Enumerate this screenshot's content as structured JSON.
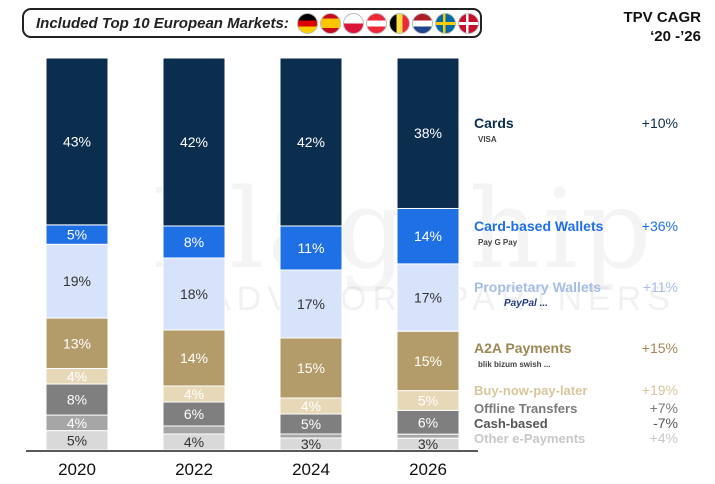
{
  "header": {
    "title": "Included Top 10 European Markets:",
    "flags": [
      "germany-flag",
      "spain-flag",
      "poland-flag",
      "austria-flag",
      "belgium-flag",
      "netherlands-flag",
      "sweden-flag",
      "denmark-flag"
    ]
  },
  "cagr_title": [
    "TPV CAGR",
    "‘20 -’26"
  ],
  "watermark": {
    "line1": "Flagship",
    "line2": "ADVISORY PARTNERS"
  },
  "chart_data": {
    "type": "bar",
    "stacked": true,
    "normalized_100": true,
    "categories": [
      "2020",
      "2022",
      "2024",
      "2026"
    ],
    "series": [
      {
        "name": "Cards",
        "cagr": "+10%",
        "logos": "VISA",
        "color": "#0b2d4e",
        "label_color": "#0b2d4e",
        "text_color": "#ffffff",
        "values": [
          43,
          42,
          42,
          38
        ],
        "labels": [
          "43%",
          "42%",
          "42%",
          "38%"
        ]
      },
      {
        "name": "Card-based Wallets",
        "cagr": "+36%",
        "logos": "Pay  G Pay",
        "color": "#1f6fe5",
        "label_color": "#1f6fe5",
        "text_color": "#ffffff",
        "values": [
          5,
          8,
          11,
          14
        ],
        "labels": [
          "5%",
          "8%",
          "11%",
          "14%"
        ]
      },
      {
        "name": "Proprietary Wallets",
        "cagr": "+11%",
        "logos": "PayPal  ...",
        "color": "#d7e3fa",
        "label_color": "#a6bde6",
        "text_color": "#333333",
        "values": [
          19,
          18,
          17,
          17
        ],
        "labels": [
          "19%",
          "18%",
          "17%",
          "17%"
        ]
      },
      {
        "name": "A2A Payments",
        "cagr": "+15%",
        "logos": "blik  bizum  swish  ...",
        "color": "#b39b6a",
        "label_color": "#9f8755",
        "text_color": "#ffffff",
        "values": [
          13,
          14,
          15,
          15
        ],
        "labels": [
          "13%",
          "14%",
          "15%",
          "15%"
        ]
      },
      {
        "name": "Buy-now-pay-later",
        "cagr": "+19%",
        "color": "#e7d9b8",
        "label_color": "#d8c69c",
        "text_color": "#ffffff",
        "values": [
          4,
          4,
          4,
          5
        ],
        "labels": [
          "4%",
          "4%",
          "4%",
          "5%"
        ]
      },
      {
        "name": "Offline Transfers",
        "cagr": "+7%",
        "color": "#7f7f7f",
        "label_color": "#7a7a7a",
        "text_color": "#ffffff",
        "values": [
          8,
          6,
          5,
          6
        ],
        "labels": [
          "8%",
          "6%",
          "5%",
          "6%"
        ]
      },
      {
        "name": "Cash-based",
        "cagr": "-7%",
        "color": "#a6a6a6",
        "label_color": "#555555",
        "text_color": "#ffffff",
        "values": [
          4,
          2,
          1,
          1
        ],
        "labels": [
          "4%",
          "",
          "",
          ""
        ]
      },
      {
        "name": "Other e-Payments",
        "cagr": "+4%",
        "color": "#d9d9d9",
        "label_color": "#c8c8c8",
        "text_color": "#333333",
        "values": [
          5,
          4,
          3,
          3
        ],
        "labels": [
          "5%",
          "4%",
          "3%",
          "3%"
        ]
      }
    ],
    "colors": {
      "axis_line": "#222222",
      "separator": "#ffffff"
    }
  }
}
